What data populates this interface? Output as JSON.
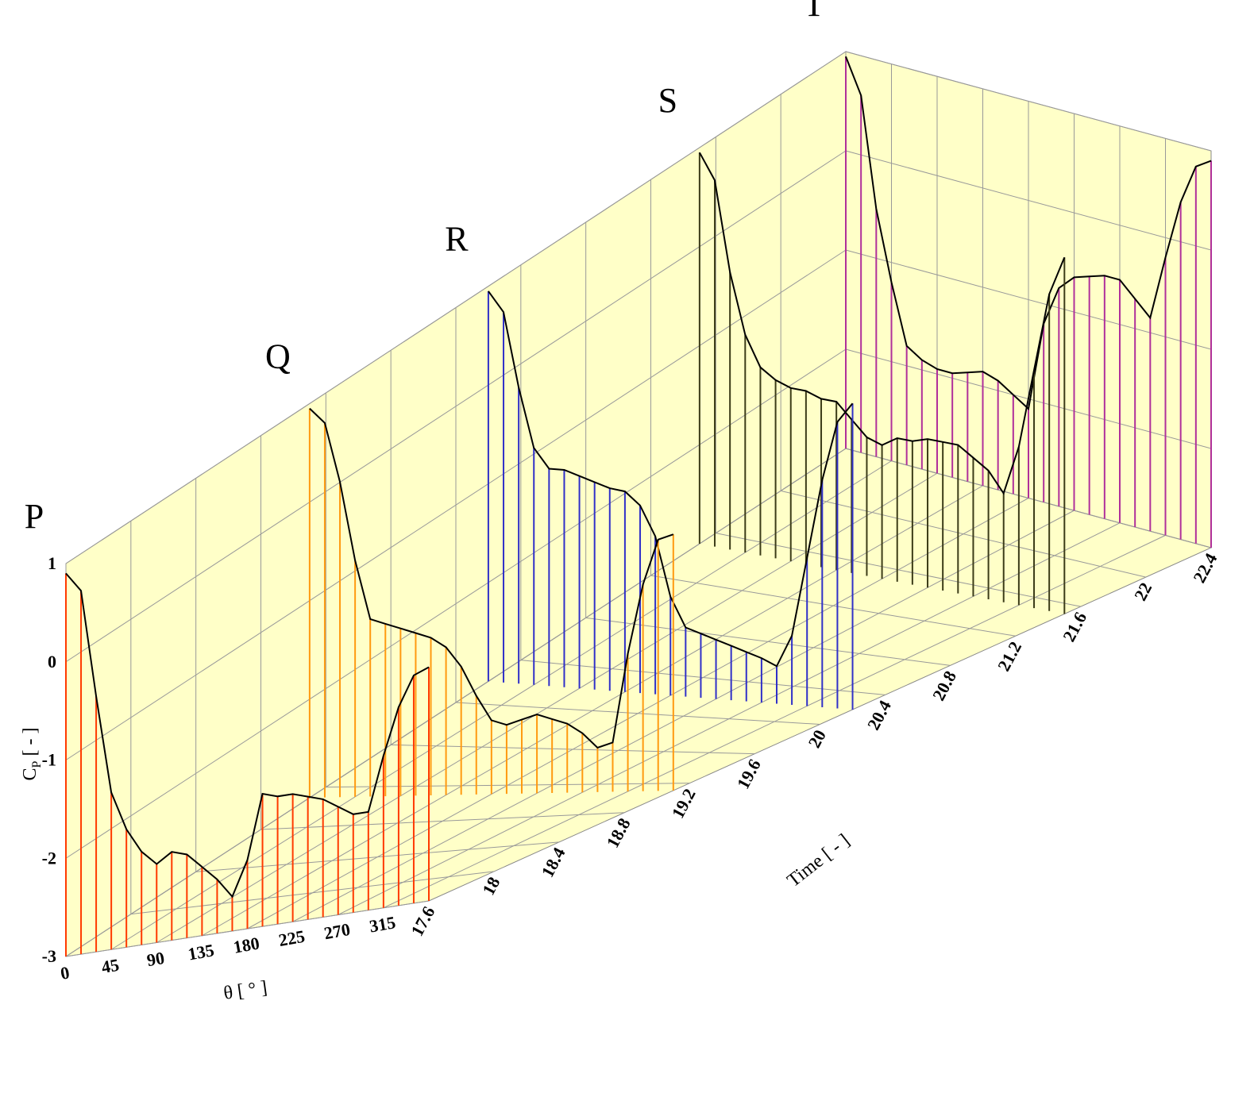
{
  "chart_data": {
    "type": "waterfall",
    "x": [
      0,
      15,
      30,
      45,
      60,
      75,
      90,
      105,
      120,
      135,
      150,
      165,
      180,
      195,
      210,
      225,
      240,
      255,
      270,
      285,
      300,
      315,
      330,
      345,
      360
    ],
    "xlim": [
      0,
      360
    ],
    "xticks": [
      0,
      45,
      90,
      135,
      180,
      225,
      270,
      315
    ],
    "xlabel": "θ [ ° ]",
    "ylim": [
      -3,
      1
    ],
    "yticks": [
      -3,
      -2,
      -1,
      0,
      1
    ],
    "ylabel": {
      "main": "C",
      "sub": "P",
      "rest": " [ - ]"
    },
    "zlim": [
      17.6,
      22.4
    ],
    "zticks": [
      17.6,
      18,
      18.4,
      18.8,
      19.2,
      19.6,
      20,
      20.4,
      20.8,
      21.2,
      21.6,
      22,
      22.4
    ],
    "zlabel": "Time [ - ]",
    "grid": true,
    "background": "#ffffc8",
    "series": [
      {
        "name": "P",
        "time": 17.6,
        "color": "#ff3a00",
        "values": [
          0.9,
          0.7,
          -0.4,
          -1.4,
          -1.8,
          -2.05,
          -2.2,
          -2.1,
          -2.15,
          -2.3,
          -2.45,
          -2.65,
          -2.3,
          -1.65,
          -1.7,
          -1.7,
          -1.75,
          -1.8,
          -1.9,
          -2.0,
          -2.0,
          -1.45,
          -0.98,
          -0.68,
          -0.62
        ]
      },
      {
        "name": "Q",
        "time": 19.1,
        "color": "#ff9a10",
        "values": [
          0.95,
          0.8,
          0.2,
          -0.6,
          -1.2,
          -1.25,
          -1.3,
          -1.35,
          -1.4,
          -1.5,
          -1.7,
          -2.0,
          -2.25,
          -2.3,
          -2.25,
          -2.2,
          -2.25,
          -2.3,
          -2.4,
          -2.55,
          -2.5,
          -1.6,
          -0.9,
          -0.45,
          -0.4
        ]
      },
      {
        "name": "R",
        "time": 20.2,
        "color": "#3030c8",
        "values": [
          0.95,
          0.75,
          0.0,
          -0.6,
          -0.8,
          -0.8,
          -0.85,
          -0.9,
          -0.95,
          -0.97,
          -1.1,
          -1.4,
          -2.0,
          -2.3,
          -2.35,
          -2.4,
          -2.45,
          -2.5,
          -2.55,
          -2.62,
          -2.3,
          -1.5,
          -0.7,
          -0.1,
          0.1
        ]
      },
      {
        "name": "S",
        "time": 21.5,
        "color": "#3c3c18",
        "values": [
          0.95,
          0.7,
          -0.2,
          -0.8,
          -1.1,
          -1.2,
          -1.25,
          -1.25,
          -1.3,
          -1.3,
          -1.45,
          -1.6,
          -1.65,
          -1.55,
          -1.55,
          -1.5,
          -1.5,
          -1.5,
          -1.6,
          -1.7,
          -1.9,
          -1.4,
          -0.6,
          0.2,
          0.6
        ]
      },
      {
        "name": "T",
        "time": 22.4,
        "color": "#b0309a",
        "values": [
          0.95,
          0.6,
          -0.5,
          -1.2,
          -1.8,
          -1.9,
          -1.95,
          -1.95,
          -1.9,
          -1.85,
          -1.9,
          -2.0,
          -2.1,
          -1.2,
          -0.8,
          -0.65,
          -0.6,
          -0.55,
          -0.55,
          -0.7,
          -0.85,
          -0.2,
          0.4,
          0.8,
          0.9
        ]
      }
    ]
  }
}
